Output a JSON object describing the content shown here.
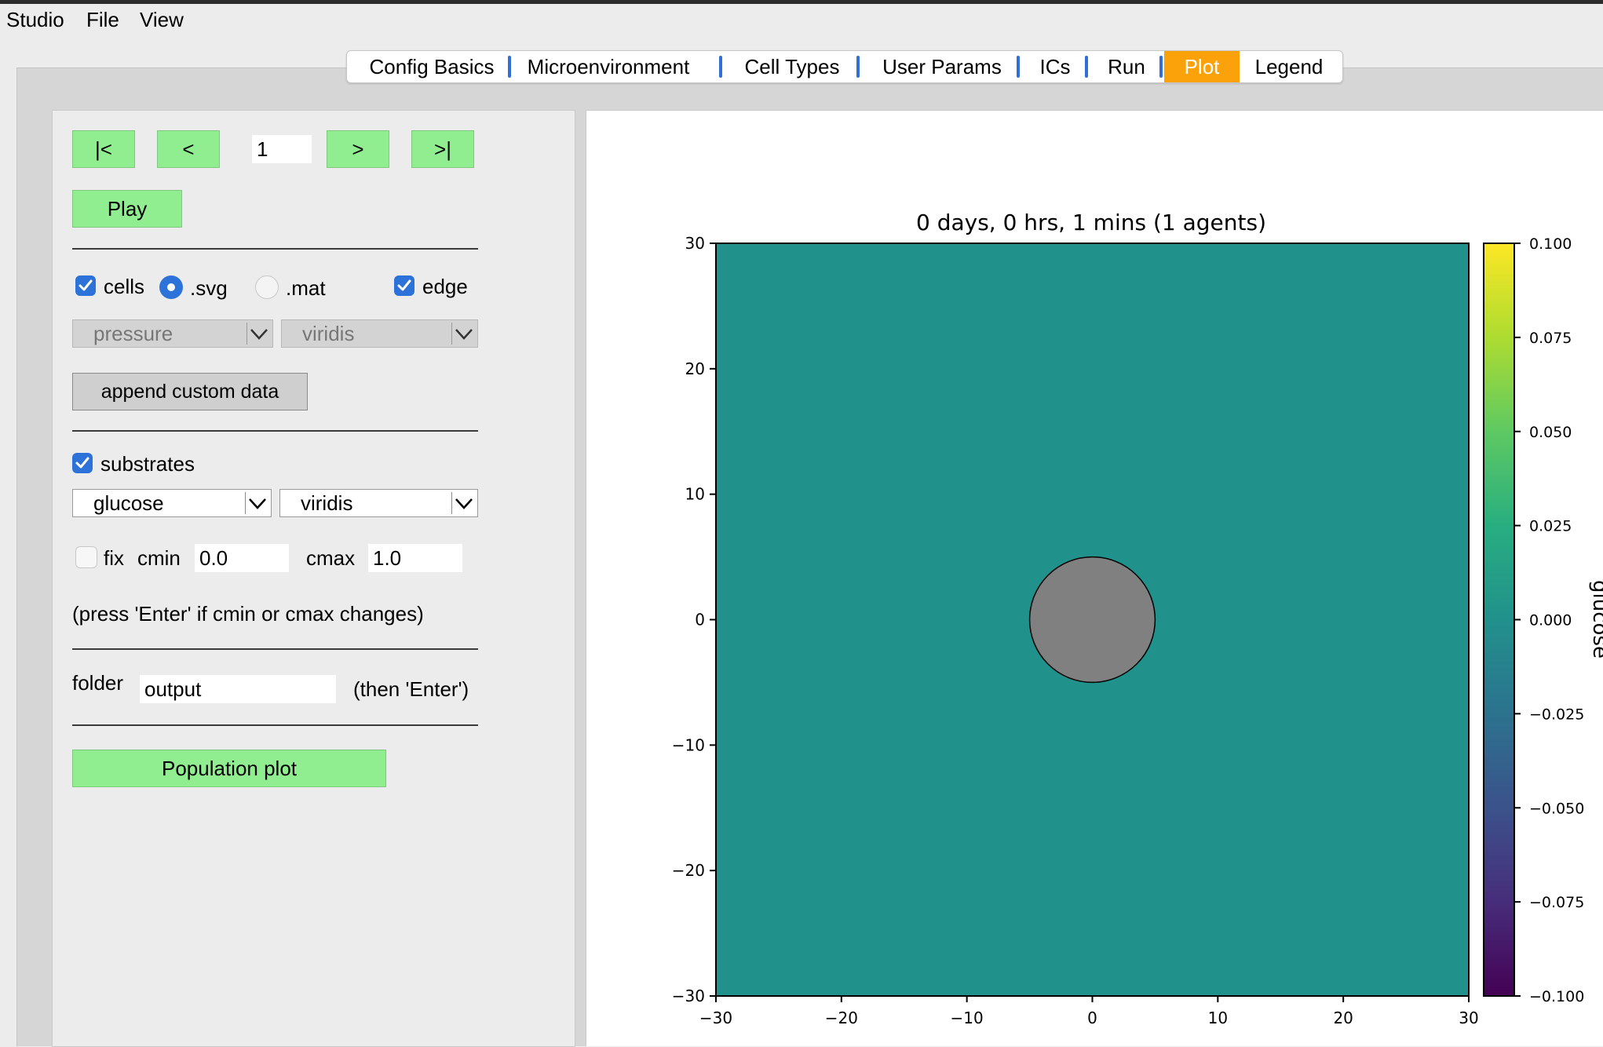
{
  "menu": [
    "Studio",
    "File",
    "View"
  ],
  "tabs": [
    {
      "label": "Config Basics",
      "active": false
    },
    {
      "label": "Microenvironment",
      "active": false
    },
    {
      "label": "Cell Types",
      "active": false
    },
    {
      "label": "User Params",
      "active": false
    },
    {
      "label": "ICs",
      "active": false
    },
    {
      "label": "Run",
      "active": false
    },
    {
      "label": "Plot",
      "active": true
    },
    {
      "label": "Legend",
      "active": false
    }
  ],
  "controls": {
    "first_label": "|<",
    "prev_label": "<",
    "frame_value": "1",
    "next_label": ">",
    "last_label": ">|",
    "play_label": "Play",
    "cells_label": "cells",
    "cells_checked": true,
    "svg_label": ".svg",
    "svg_selected": true,
    "mat_label": ".mat",
    "mat_selected": false,
    "edge_label": "edge",
    "edge_checked": true,
    "cell_scalar_select": "pressure",
    "cell_cmap_select": "viridis",
    "append_label": "append custom data",
    "substrates_label": "substrates",
    "substrates_checked": true,
    "substrate_select": "glucose",
    "substrate_cmap_select": "viridis",
    "fix_label": "fix",
    "fix_checked": false,
    "cmin_label": "cmin",
    "cmin_value": "0.0",
    "cmax_label": "cmax",
    "cmax_value": "1.0",
    "hint_text": "(press 'Enter' if cmin or cmax changes)",
    "folder_label": "folder",
    "folder_value": "output",
    "folder_hint": "(then 'Enter')",
    "population_label": "Population plot"
  },
  "colors": {
    "active_tab": "#fba20a",
    "green_button": "#90ee90",
    "field_fill": "#21918c",
    "cell_fill": "#808080",
    "accent_blue": "#2d72d9"
  },
  "chart_data": {
    "type": "heatmap",
    "title": "0 days, 0 hrs, 1 mins (1 agents)",
    "xlim": [
      -30,
      30
    ],
    "ylim": [
      -30,
      30
    ],
    "x_ticks": [
      "−30",
      "−20",
      "−10",
      "0",
      "10",
      "20",
      "30"
    ],
    "y_ticks": [
      "30",
      "20",
      "10",
      "0",
      "−10",
      "−20",
      "−30"
    ],
    "field_value": 0.0,
    "colorbar": {
      "colormap": "viridis",
      "range": [
        -0.1,
        0.1
      ],
      "ticks": [
        "0.100",
        "0.075",
        "0.050",
        "0.025",
        "0.000",
        "−0.025",
        "−0.050",
        "−0.075",
        "−0.100"
      ],
      "label": "glucose"
    },
    "agents": [
      {
        "x": 0,
        "y": 0,
        "radius": 5
      }
    ]
  }
}
